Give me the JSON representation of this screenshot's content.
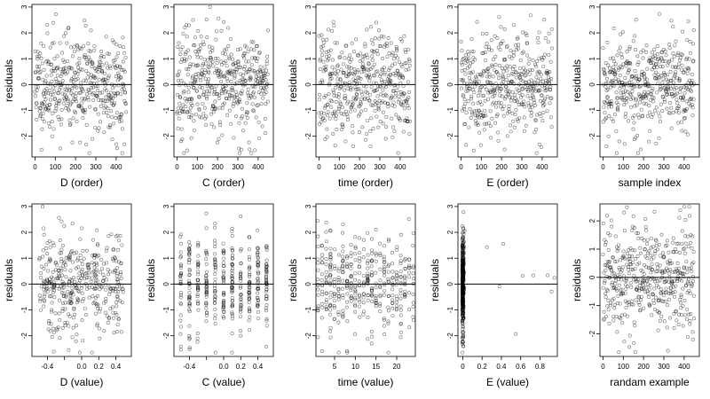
{
  "chart_data": [
    {
      "type": "scatter",
      "xlabel": "D (order)",
      "ylabel": "residuals",
      "xlim": [
        -15,
        475
      ],
      "ylim": [
        -2.8,
        3.1
      ],
      "xticks": [
        0,
        100,
        200,
        300,
        400
      ],
      "yticks": [
        -2,
        -1,
        0,
        1,
        2,
        3
      ],
      "ref_line_y": 0,
      "point_count": 450,
      "x_distribution": "index",
      "seed": 11
    },
    {
      "type": "scatter",
      "xlabel": "C (order)",
      "ylabel": "residuals",
      "xlim": [
        -15,
        475
      ],
      "ylim": [
        -2.8,
        3.1
      ],
      "xticks": [
        0,
        100,
        200,
        300,
        400
      ],
      "yticks": [
        -2,
        -1,
        0,
        1,
        2,
        3
      ],
      "ref_line_y": 0,
      "point_count": 450,
      "x_distribution": "index",
      "seed": 23
    },
    {
      "type": "scatter",
      "xlabel": "time (order)",
      "ylabel": "residuals",
      "xlim": [
        -15,
        475
      ],
      "ylim": [
        -2.8,
        3.1
      ],
      "xticks": [
        0,
        100,
        200,
        300,
        400
      ],
      "yticks": [
        -2,
        -1,
        0,
        1,
        2,
        3
      ],
      "ref_line_y": 0,
      "point_count": 450,
      "x_distribution": "index",
      "seed": 37
    },
    {
      "type": "scatter",
      "xlabel": "E (order)",
      "ylabel": "residuals",
      "xlim": [
        -15,
        475
      ],
      "ylim": [
        -2.8,
        3.1
      ],
      "xticks": [
        0,
        100,
        200,
        300,
        400
      ],
      "yticks": [
        -2,
        -1,
        0,
        1,
        2,
        3
      ],
      "ref_line_y": 0,
      "point_count": 450,
      "x_distribution": "index",
      "seed": 41
    },
    {
      "type": "scatter",
      "xlabel": "sample index",
      "ylabel": "residuals",
      "xlim": [
        -15,
        475
      ],
      "ylim": [
        -2.8,
        3.1
      ],
      "xticks": [
        0,
        100,
        200,
        300,
        400
      ],
      "yticks": [
        -2,
        -1,
        0,
        1,
        2,
        3
      ],
      "ref_line_y": 0,
      "point_count": 450,
      "x_distribution": "index",
      "seed": 53
    },
    {
      "type": "scatter",
      "xlabel": "D (value)",
      "ylabel": "residuals",
      "xlim": [
        -0.58,
        0.58
      ],
      "ylim": [
        -2.8,
        3.1
      ],
      "xticks": [
        -0.4,
        -0.2,
        0.0,
        0.2,
        0.4
      ],
      "xtick_labels": [
        "-0.4",
        "0.0",
        "0.2",
        "0.4"
      ],
      "yticks": [
        -2,
        -1,
        0,
        1,
        2,
        3
      ],
      "ref_line_y": 0,
      "point_count": 400,
      "x_distribution": "uniform",
      "seed": 61
    },
    {
      "type": "scatter",
      "xlabel": "C (value)",
      "ylabel": "residuals",
      "xlim": [
        -0.58,
        0.58
      ],
      "ylim": [
        -2.8,
        3.1
      ],
      "xticks": [
        -0.4,
        -0.2,
        0.0,
        0.2,
        0.4
      ],
      "xtick_labels": [
        "-0.4",
        "0.0",
        "0.2",
        "0.4"
      ],
      "yticks": [
        -2,
        -1,
        0,
        1,
        2,
        3
      ],
      "ref_line_y": 0,
      "point_count": 400,
      "x_distribution": "discrete",
      "discrete_levels": [
        -0.5,
        -0.4,
        -0.3,
        -0.2,
        -0.1,
        0.0,
        0.1,
        0.2,
        0.3,
        0.4,
        0.5
      ],
      "seed": 71
    },
    {
      "type": "scatter",
      "xlabel": "time (value)",
      "ylabel": "residuals",
      "xlim": [
        0.5,
        24.5
      ],
      "ylim": [
        -2.8,
        3.1
      ],
      "xticks": [
        5,
        10,
        15,
        20
      ],
      "yticks": [
        -2,
        -1,
        0,
        1,
        2,
        3
      ],
      "ref_line_y": 0,
      "point_count": 400,
      "x_distribution": "discrete",
      "discrete_levels": [
        1,
        2,
        3,
        4,
        5,
        6,
        7,
        8,
        9,
        10,
        11,
        12,
        13,
        14,
        15,
        16,
        17,
        18,
        19,
        20,
        21,
        22,
        23,
        24
      ],
      "seed": 83
    },
    {
      "type": "scatter",
      "xlabel": "E (value)",
      "ylabel": "residuals",
      "xlim": [
        -0.05,
        0.98
      ],
      "ylim": [
        -2.8,
        3.1
      ],
      "xticks": [
        0.0,
        0.2,
        0.4,
        0.6,
        0.8
      ],
      "yticks": [
        -2,
        -1,
        0,
        1,
        2,
        3
      ],
      "ref_line_y": 0,
      "point_count": 400,
      "x_distribution": "skewed",
      "outlier_x": [
        0.25,
        0.38,
        0.42,
        0.55,
        0.62,
        0.73,
        0.88,
        0.92,
        0.95
      ],
      "seed": 97
    },
    {
      "type": "scatter",
      "xlabel": "randam example",
      "ylabel": "residuals",
      "xlim": [
        -15,
        475
      ],
      "ylim": [
        -2.8,
        2.6
      ],
      "xticks": [
        0,
        100,
        200,
        300,
        400
      ],
      "yticks": [
        -2,
        -1,
        0,
        1,
        2
      ],
      "ref_line_y": 0,
      "point_count": 450,
      "x_distribution": "index",
      "seed": 109
    }
  ]
}
